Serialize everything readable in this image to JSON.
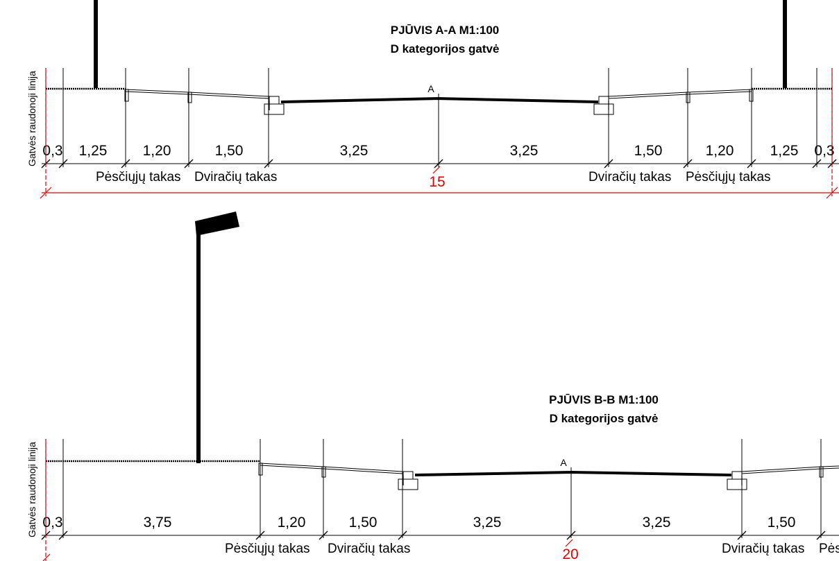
{
  "colors": {
    "line": "#000000",
    "total_dimension": "#e10000",
    "background": "#ffffff"
  },
  "section_a": {
    "title_line1": "PJŪVIS A-A M1:100",
    "title_line2": "D kategorijos gatvė",
    "axis_label": "A",
    "red_line_label": "Gatvės raudonoji linija",
    "dimensions": [
      "0,3",
      "1,25",
      "1,20",
      "1,50",
      "3,25",
      "3,25",
      "1,50",
      "1,20",
      "1,25",
      "0,3"
    ],
    "total_width": "15",
    "lane_labels": [
      "Pėsčiųjų takas",
      "Dviračių takas",
      "Dviračių takas",
      "Pėsčiųjų takas"
    ]
  },
  "section_b": {
    "title_line1": "PJŪVIS B-B M1:100",
    "title_line2": "D kategorijos gatvė",
    "axis_label": "A",
    "red_line_label": "Gatvės raudonoji linija",
    "dimensions": [
      "0,3",
      "3,75",
      "1,20",
      "1,50",
      "3,25",
      "3,25",
      "1,50"
    ],
    "total_width": "20",
    "lane_labels": [
      "Pėsčiųjų takas",
      "Dviračių takas",
      "Dviračių takas",
      "Pės"
    ]
  }
}
